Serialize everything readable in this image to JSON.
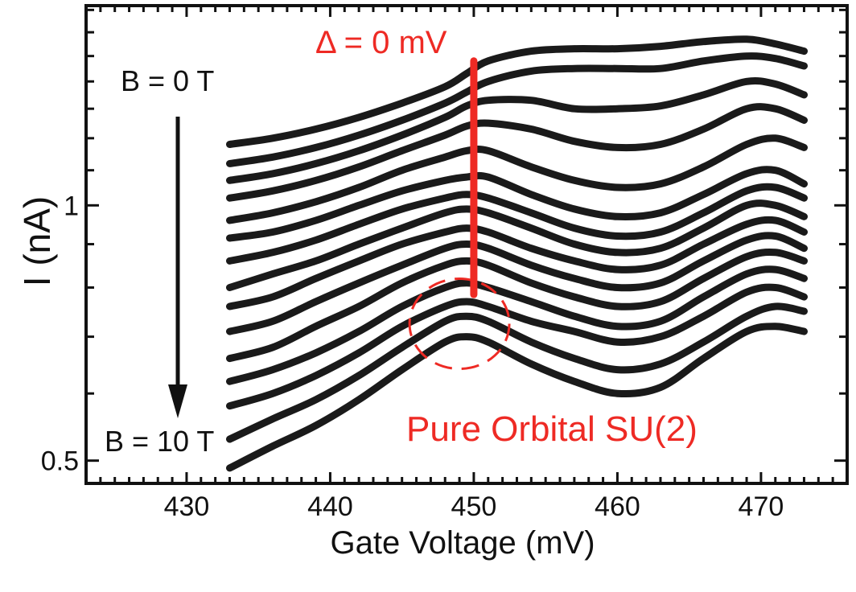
{
  "chart_data": {
    "type": "line",
    "xlabel": "Gate Voltage  (mV)",
    "ylabel": "I (nA)",
    "xlim": [
      423,
      476
    ],
    "ylim": [
      0.47,
      1.72
    ],
    "yscale": "log",
    "x_ticks": [
      430,
      440,
      450,
      460,
      470
    ],
    "x_tick_labels": [
      "430",
      "440",
      "450",
      "460",
      "470"
    ],
    "y_tick_labels": [
      {
        "value": 1,
        "label": "1"
      },
      {
        "value": 0.5,
        "label": "0.5"
      }
    ],
    "grid": false,
    "legend": "none",
    "x": [
      433,
      436,
      439,
      442,
      445,
      448,
      449.5,
      451,
      454,
      457,
      460,
      463,
      466,
      469,
      471,
      473
    ],
    "series": [
      {
        "values": [
          1.18,
          1.2,
          1.23,
          1.27,
          1.32,
          1.38,
          1.43,
          1.48,
          1.52,
          1.53,
          1.53,
          1.54,
          1.56,
          1.57,
          1.55,
          1.52
        ]
      },
      {
        "values": [
          1.12,
          1.14,
          1.17,
          1.21,
          1.26,
          1.32,
          1.36,
          1.4,
          1.44,
          1.45,
          1.45,
          1.45,
          1.48,
          1.5,
          1.49,
          1.46
        ]
      },
      {
        "values": [
          1.07,
          1.09,
          1.12,
          1.16,
          1.21,
          1.27,
          1.31,
          1.33,
          1.33,
          1.3,
          1.3,
          1.31,
          1.35,
          1.4,
          1.39,
          1.35
        ]
      },
      {
        "values": [
          1.02,
          1.04,
          1.07,
          1.11,
          1.16,
          1.21,
          1.24,
          1.25,
          1.23,
          1.19,
          1.17,
          1.18,
          1.23,
          1.3,
          1.3,
          1.26
        ]
      },
      {
        "values": [
          0.96,
          0.98,
          1.01,
          1.05,
          1.1,
          1.14,
          1.16,
          1.16,
          1.11,
          1.07,
          1.05,
          1.06,
          1.11,
          1.18,
          1.2,
          1.17
        ]
      },
      {
        "values": [
          0.915,
          0.93,
          0.96,
          1.0,
          1.04,
          1.07,
          1.08,
          1.08,
          1.03,
          0.99,
          0.97,
          0.98,
          1.03,
          1.09,
          1.1,
          1.06
        ]
      },
      {
        "values": [
          0.86,
          0.88,
          0.91,
          0.95,
          0.99,
          1.02,
          1.03,
          1.02,
          0.98,
          0.94,
          0.92,
          0.93,
          0.98,
          1.04,
          1.05,
          1.02
        ]
      },
      {
        "values": [
          0.8,
          0.83,
          0.86,
          0.9,
          0.94,
          0.98,
          0.99,
          0.98,
          0.94,
          0.9,
          0.88,
          0.89,
          0.94,
          1.0,
          1.0,
          0.97
        ]
      },
      {
        "values": [
          0.76,
          0.78,
          0.82,
          0.86,
          0.9,
          0.93,
          0.94,
          0.93,
          0.89,
          0.86,
          0.84,
          0.85,
          0.9,
          0.95,
          0.96,
          0.93
        ]
      },
      {
        "values": [
          0.71,
          0.73,
          0.77,
          0.81,
          0.85,
          0.89,
          0.9,
          0.89,
          0.85,
          0.82,
          0.8,
          0.81,
          0.86,
          0.91,
          0.92,
          0.89
        ]
      },
      {
        "values": [
          0.66,
          0.68,
          0.72,
          0.76,
          0.81,
          0.85,
          0.86,
          0.85,
          0.81,
          0.78,
          0.76,
          0.77,
          0.82,
          0.87,
          0.88,
          0.86
        ]
      },
      {
        "values": [
          0.62,
          0.64,
          0.67,
          0.71,
          0.76,
          0.8,
          0.81,
          0.8,
          0.77,
          0.74,
          0.72,
          0.73,
          0.78,
          0.83,
          0.84,
          0.82
        ]
      },
      {
        "values": [
          0.58,
          0.6,
          0.63,
          0.67,
          0.72,
          0.76,
          0.77,
          0.76,
          0.73,
          0.71,
          0.69,
          0.7,
          0.74,
          0.79,
          0.8,
          0.78
        ]
      },
      {
        "values": [
          0.53,
          0.56,
          0.59,
          0.63,
          0.68,
          0.73,
          0.74,
          0.73,
          0.69,
          0.66,
          0.64,
          0.65,
          0.69,
          0.74,
          0.76,
          0.75
        ]
      },
      {
        "values": [
          0.49,
          0.52,
          0.55,
          0.59,
          0.64,
          0.69,
          0.7,
          0.69,
          0.65,
          0.62,
          0.6,
          0.61,
          0.66,
          0.71,
          0.72,
          0.71
        ]
      }
    ],
    "annotations": {
      "delta_label": "Δ = 0 mV",
      "delta_line_x": 450,
      "delta_line_y": [
        0.785,
        1.48
      ],
      "b_top_label": "B = 0 T",
      "b_bottom_label": "B = 10 T",
      "circle_label": "Pure Orbital SU(2)",
      "circle_center": {
        "x": 449,
        "y": 0.725
      }
    },
    "colors": {
      "data": "#1a1a1a",
      "annotation": "#ee2a24"
    }
  }
}
